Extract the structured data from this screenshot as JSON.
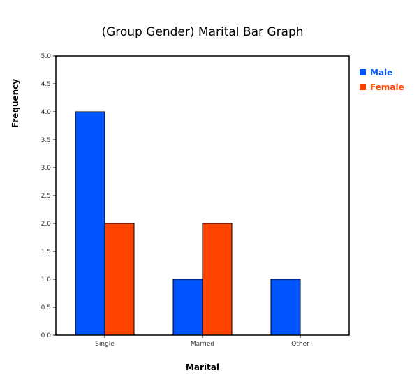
{
  "chart_data": {
    "type": "bar",
    "title": "(Group Gender) Marital Bar Graph",
    "xlabel": "Marital",
    "ylabel": "Frequency",
    "categories": [
      "Single",
      "Married",
      "Other"
    ],
    "series": [
      {
        "name": "Male",
        "values": [
          4,
          1,
          1
        ],
        "color": "#0055ff"
      },
      {
        "name": "Female",
        "values": [
          2,
          2,
          0
        ],
        "color": "#ff4400"
      }
    ],
    "ylim": [
      0,
      5
    ],
    "yticks": [
      "0.0",
      "0.5",
      "1.0",
      "1.5",
      "2.0",
      "2.5",
      "3.0",
      "3.5",
      "4.0",
      "4.5",
      "5.0"
    ],
    "legend_position": "right-top",
    "grid": false
  }
}
